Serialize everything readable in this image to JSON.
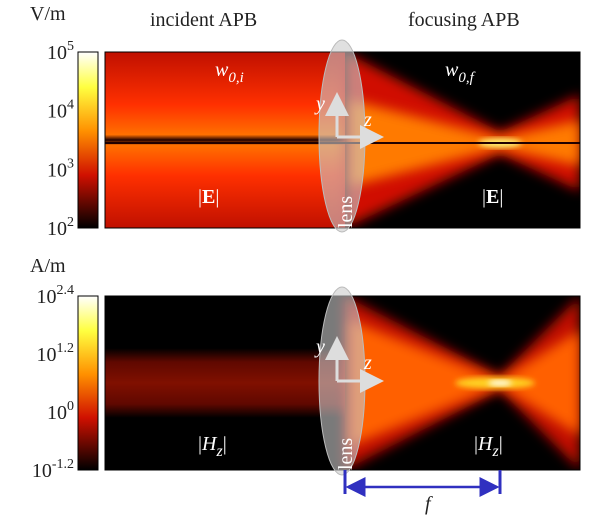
{
  "panels": [
    {
      "unit": "V/m",
      "title_left": "incident APB",
      "title_right": "focusing APB",
      "colorbar_ticks": [
        {
          "base": "10",
          "exp": "5"
        },
        {
          "base": "10",
          "exp": "4"
        },
        {
          "base": "10",
          "exp": "3"
        },
        {
          "base": "10",
          "exp": "2"
        }
      ],
      "waist_left": {
        "base": "w",
        "sub": "0,i"
      },
      "waist_right": {
        "base": "w",
        "sub": "0,f"
      },
      "field_left": {
        "open": "|",
        "symbol": "E",
        "close": "|"
      },
      "field_right": {
        "open": "|",
        "symbol": "E",
        "close": "|"
      },
      "axis_y": "y",
      "axis_z": "z",
      "lens": "lens"
    },
    {
      "unit": "A/m",
      "colorbar_ticks": [
        {
          "base": "10",
          "exp": "2.4"
        },
        {
          "base": "10",
          "exp": "1.2"
        },
        {
          "base": "10",
          "exp": "0"
        },
        {
          "base": "10",
          "exp": "-1.2"
        }
      ],
      "field_left": {
        "open": "|",
        "symbol": "H",
        "sub": "z",
        "close": "|"
      },
      "field_right": {
        "open": "|",
        "symbol": "H",
        "sub": "z",
        "close": "|"
      },
      "axis_y": "y",
      "axis_z": "z",
      "lens": "lens",
      "focal_length": "f"
    }
  ]
}
